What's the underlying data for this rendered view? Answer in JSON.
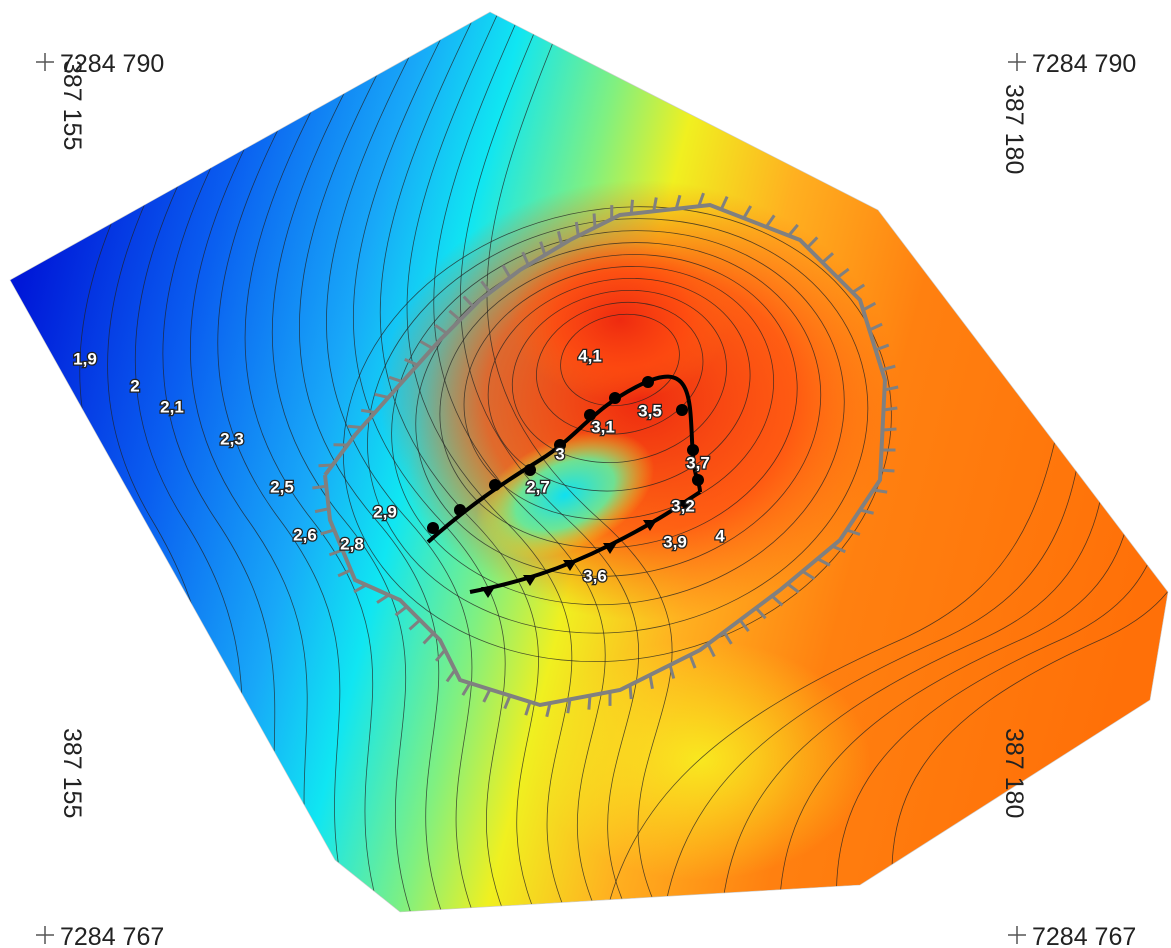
{
  "corners": [
    {
      "northing": "7284 790",
      "easting": "387 155"
    },
    {
      "northing": "7284 790",
      "easting": "387 180"
    },
    {
      "northing": "7284 767",
      "easting": "387 155"
    },
    {
      "northing": "7284 767",
      "easting": "387 180"
    }
  ],
  "contour_labels": [
    "1,9",
    "2",
    "2,1",
    "2,3",
    "2,5",
    "2,6",
    "2,9",
    "2,8",
    "4,1",
    "3,5",
    "3,1",
    "3",
    "3,7",
    "2,7",
    "3,2",
    "3,9",
    "4",
    "3,6"
  ]
}
